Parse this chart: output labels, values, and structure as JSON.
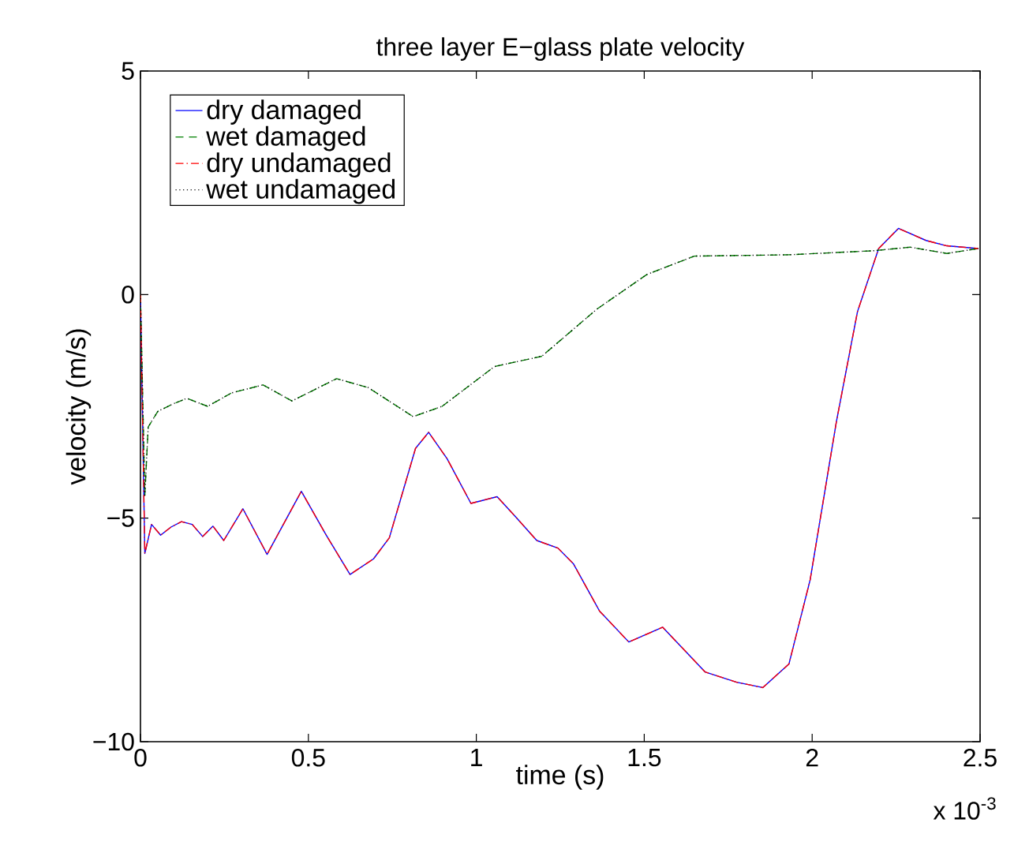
{
  "chart_data": {
    "type": "line",
    "title": "three layer E−glass plate velocity",
    "xlabel": "time (s)",
    "ylabel": "velocity (m/s)",
    "xlim": [
      0,
      2.5
    ],
    "ylim": [
      -10,
      5
    ],
    "xticks": [
      0,
      0.5,
      1,
      1.5,
      2,
      2.5
    ],
    "yticks": [
      {
        "value": -10,
        "label": "−10"
      },
      {
        "value": -5,
        "label": "−5"
      },
      0,
      5
    ],
    "annotations": [
      "x 10$^{-3}$"
    ],
    "legend": "top left",
    "grid": false,
    "series": [
      {
        "name": "dry damaged",
        "color": "#0000ff",
        "line_style": "solid",
        "x": [
          0,
          0.013,
          0.033,
          0.06,
          0.091,
          0.122,
          0.154,
          0.185,
          0.216,
          0.248,
          0.305,
          0.377,
          0.479,
          0.553,
          0.624,
          0.694,
          0.741,
          0.819,
          0.858,
          0.913,
          0.984,
          1.062,
          1.117,
          1.18,
          1.243,
          1.289,
          1.367,
          1.454,
          1.555,
          1.681,
          1.775,
          1.853,
          1.931,
          1.994,
          2.072,
          2.135,
          2.198,
          2.257,
          2.339,
          2.401,
          2.495
        ],
        "values": [
          0,
          -5.79,
          -5.14,
          -5.38,
          -5.2,
          -5.08,
          -5.14,
          -5.41,
          -5.18,
          -5.5,
          -4.79,
          -5.81,
          -4.4,
          -5.38,
          -6.26,
          -5.91,
          -5.44,
          -3.44,
          -3.08,
          -3.67,
          -4.67,
          -4.52,
          -4.97,
          -5.5,
          -5.67,
          -6.02,
          -7.08,
          -7.77,
          -7.44,
          -8.44,
          -8.67,
          -8.79,
          -8.26,
          -6.38,
          -2.85,
          -0.38,
          1.03,
          1.48,
          1.21,
          1.09,
          1.03
        ]
      },
      {
        "name": "wet damaged",
        "color": "#008000",
        "line_style": "dashed",
        "x": [
          0,
          0.013,
          0.023,
          0.052,
          0.099,
          0.138,
          0.2,
          0.271,
          0.365,
          0.451,
          0.584,
          0.678,
          0.812,
          0.898,
          1.054,
          1.195,
          1.36,
          1.508,
          1.649,
          1.931,
          2.182,
          2.292,
          2.401,
          2.495
        ],
        "values": [
          0,
          -4.49,
          -2.96,
          -2.61,
          -2.44,
          -2.32,
          -2.5,
          -2.2,
          -2.02,
          -2.38,
          -1.88,
          -2.08,
          -2.73,
          -2.5,
          -1.61,
          -1.38,
          -0.32,
          0.45,
          0.86,
          0.89,
          0.98,
          1.06,
          0.92,
          1.03
        ]
      },
      {
        "name": "dry undamaged",
        "color": "#ff0000",
        "line_style": "dashdot",
        "x": [
          0,
          0.013,
          0.033,
          0.06,
          0.091,
          0.122,
          0.154,
          0.185,
          0.216,
          0.248,
          0.305,
          0.377,
          0.479,
          0.553,
          0.624,
          0.694,
          0.741,
          0.819,
          0.858,
          0.913,
          0.984,
          1.062,
          1.117,
          1.18,
          1.243,
          1.289,
          1.367,
          1.454,
          1.555,
          1.681,
          1.775,
          1.853,
          1.931,
          1.994,
          2.072,
          2.135,
          2.198,
          2.257,
          2.339,
          2.401,
          2.495
        ],
        "values": [
          0,
          -5.79,
          -5.14,
          -5.38,
          -5.2,
          -5.08,
          -5.14,
          -5.41,
          -5.18,
          -5.5,
          -4.79,
          -5.81,
          -4.4,
          -5.38,
          -6.26,
          -5.91,
          -5.44,
          -3.44,
          -3.08,
          -3.67,
          -4.67,
          -4.52,
          -4.97,
          -5.5,
          -5.67,
          -6.02,
          -7.08,
          -7.77,
          -7.44,
          -8.44,
          -8.67,
          -8.79,
          -8.26,
          -6.38,
          -2.85,
          -0.38,
          1.03,
          1.48,
          1.21,
          1.09,
          1.03
        ]
      },
      {
        "name": "wet undamaged",
        "color": "#000000",
        "line_style": "dotted",
        "x": [
          0,
          0.013,
          0.023,
          0.052,
          0.099,
          0.138,
          0.2,
          0.271,
          0.365,
          0.451,
          0.584,
          0.678,
          0.812,
          0.898,
          1.054,
          1.195,
          1.36,
          1.508,
          1.649,
          1.931,
          2.182,
          2.292,
          2.401,
          2.495
        ],
        "values": [
          0,
          -4.49,
          -2.96,
          -2.61,
          -2.44,
          -2.32,
          -2.5,
          -2.2,
          -2.02,
          -2.38,
          -1.88,
          -2.08,
          -2.73,
          -2.5,
          -1.61,
          -1.38,
          -0.32,
          0.45,
          0.86,
          0.89,
          0.98,
          1.06,
          0.92,
          1.03
        ]
      }
    ]
  }
}
